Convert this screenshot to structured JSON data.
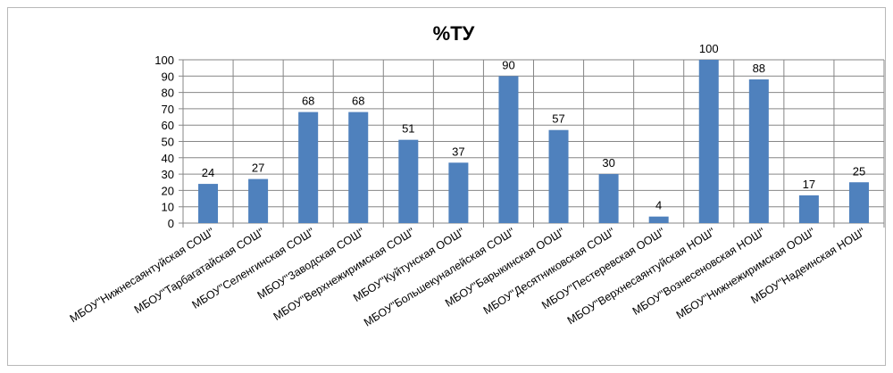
{
  "chart_data": {
    "type": "bar",
    "title": "%ТУ",
    "xlabel": "",
    "ylabel": "",
    "ylim": [
      0,
      100
    ],
    "yticks": [
      0,
      10,
      20,
      30,
      40,
      50,
      60,
      70,
      80,
      90,
      100
    ],
    "grid": true,
    "legend": "none",
    "bar_color": "#4F81BD",
    "categories": [
      "МБОУ\"Нижнесаянтуйская СОШ\"",
      "МБОУ\"Тарбагатайская СОШ\"",
      "МБОУ\"Селенгинская СОШ\"",
      "МБОУ\"Заводская СОШ\"",
      "МБОУ\"Верхнежиримская СОШ\"",
      "МБОУ\"Куйтунская ООШ\"",
      "МБОУ\"Большекуналейская СОШ\"",
      "МБОУ\"Барыкинская ООШ\"",
      "МБОУ\"Десятниковская СОШ\"",
      "МБОУ\"Пестеревская ООШ\"",
      "МБОУ\"Верхнесаянтуйская НОШ\"",
      "МБОУ\"Вознесеновская НОШ\"",
      "МБОУ\"Нижнежиримская ООШ\"",
      "МБОУ\"Надеинская НОШ\""
    ],
    "values": [
      24,
      27,
      68,
      68,
      51,
      37,
      90,
      57,
      30,
      4,
      100,
      88,
      17,
      25
    ]
  }
}
